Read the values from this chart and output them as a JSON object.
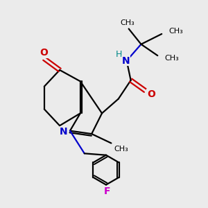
{
  "bg_color": "#ebebeb",
  "bond_color": "#000000",
  "n_color": "#0000cc",
  "o_color": "#cc0000",
  "f_color": "#cc00cc",
  "h_color": "#008888",
  "line_width": 1.6,
  "figsize": [
    3.0,
    3.0
  ],
  "dpi": 100,
  "xlim": [
    0,
    10
  ],
  "ylim": [
    0,
    10
  ]
}
